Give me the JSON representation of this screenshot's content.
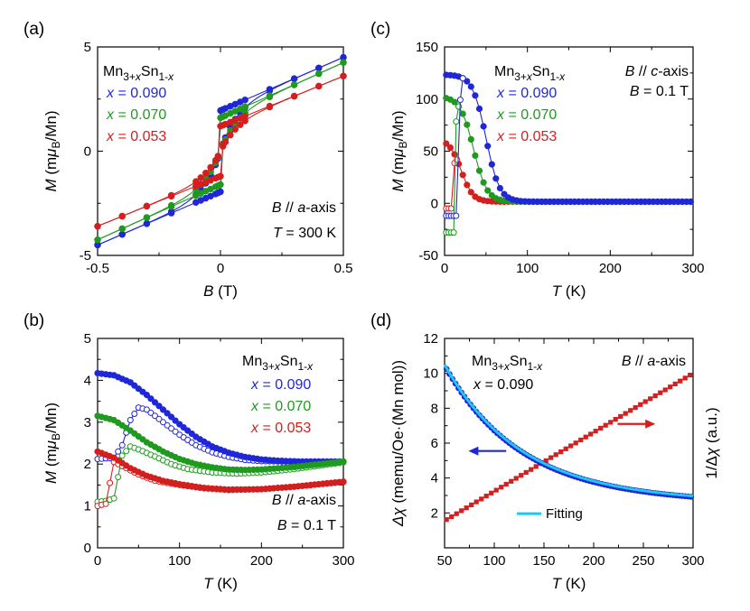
{
  "colors": {
    "blue": "#1f27d8",
    "green": "#1f9a1f",
    "red": "#d41f1f",
    "cyan": "#22c4f0",
    "axis": "#000000"
  },
  "chart_data": [
    {
      "id": "a",
      "type": "line",
      "panel_label": "(a)",
      "xlabel": {
        "sym": "B",
        "unit": " (T)"
      },
      "ylabel": {
        "sym": "M",
        "unit": " (m",
        "mu": "μ",
        "sub": "B",
        "tail": "/Mn)"
      },
      "xlim": [
        -0.5,
        0.5
      ],
      "ylim": [
        -5,
        5
      ],
      "xticks": [
        -0.5,
        0,
        0.5
      ],
      "xtick_labels": [
        "-0.5",
        "0",
        "0.5"
      ],
      "yticks": [
        -5,
        0,
        5
      ],
      "ytick_labels": [
        "-5",
        "0",
        "5"
      ],
      "legend_title": "Mn3+xSn1-x",
      "annotations": [
        {
          "sym": "B",
          "text": " // a-axis"
        },
        {
          "sym": "T",
          "text": " = 300 K"
        }
      ],
      "series": [
        {
          "name": "x = 0.090",
          "color": "blue",
          "sat": 1.95,
          "slope": 5.1,
          "ms": 0.8
        },
        {
          "name": "x = 0.070",
          "color": "green",
          "sat": 1.6,
          "slope": 5.3,
          "ms": 0.7
        },
        {
          "name": "x = 0.053",
          "color": "red",
          "sat": 1.2,
          "slope": 4.8,
          "ms": 0.45
        }
      ]
    },
    {
      "id": "c",
      "type": "line",
      "panel_label": "(c)",
      "xlabel": {
        "sym": "T",
        "unit": " (K)"
      },
      "ylabel": {
        "sym": "M",
        "unit": " (m",
        "mu": "μ",
        "sub": "B",
        "tail": "/Mn)"
      },
      "xlim": [
        0,
        300
      ],
      "ylim": [
        -50,
        150
      ],
      "xticks": [
        0,
        100,
        200,
        300
      ],
      "xtick_labels": [
        "0",
        "100",
        "200",
        "300"
      ],
      "yticks": [
        -50,
        0,
        50,
        100,
        150
      ],
      "ytick_labels": [
        "-50",
        "0",
        "50",
        "100",
        "150"
      ],
      "legend_title": "Mn3+xSn1-x",
      "annotations": [
        {
          "sym": "B",
          "text": " // c-axis"
        },
        {
          "sym": "B",
          "text": " = 0.1 T"
        }
      ],
      "series": [
        {
          "name": "x = 0.090",
          "color": "blue",
          "m0": 122,
          "tc": 50,
          "w": 8,
          "zfc": -12,
          "tf": 16
        },
        {
          "name": "x = 0.070",
          "color": "green",
          "m0": 101,
          "tc": 35,
          "w": 8,
          "zfc": -28,
          "tf": 11
        },
        {
          "name": "x = 0.053",
          "color": "red",
          "m0": 60,
          "tc": 20,
          "w": 7,
          "zfc": -5,
          "tf": 9
        }
      ]
    },
    {
      "id": "b",
      "type": "line",
      "panel_label": "(b)",
      "xlabel": {
        "sym": "T",
        "unit": " (K)"
      },
      "ylabel": {
        "sym": "M",
        "unit": " (m",
        "mu": "μ",
        "sub": "B",
        "tail": "/Mn)"
      },
      "xlim": [
        0,
        300
      ],
      "ylim": [
        0,
        5
      ],
      "xticks": [
        0,
        100,
        200,
        300
      ],
      "xtick_labels": [
        "0",
        "100",
        "200",
        "300"
      ],
      "yticks": [
        0,
        1,
        2,
        3,
        4,
        5
      ],
      "ytick_labels": [
        "0",
        "1",
        "2",
        "3",
        "4",
        "5"
      ],
      "legend_title": "Mn3+xSn1-x",
      "annotations": [
        {
          "sym": "B",
          "text": " // a-axis"
        },
        {
          "sym": "B",
          "text": " = 0.1 T"
        }
      ],
      "series": [
        {
          "name": "x = 0.090",
          "color": "blue",
          "fc": [
            [
              0,
              4.17
            ],
            [
              20,
              4.12
            ],
            [
              40,
              3.95
            ],
            [
              60,
              3.65
            ],
            [
              80,
              3.3
            ],
            [
              100,
              2.95
            ],
            [
              120,
              2.65
            ],
            [
              140,
              2.42
            ],
            [
              160,
              2.27
            ],
            [
              180,
              2.17
            ],
            [
              200,
              2.11
            ],
            [
              220,
              2.08
            ],
            [
              250,
              2.06
            ],
            [
              300,
              2.06
            ]
          ],
          "zfc": [
            [
              0,
              2.12
            ],
            [
              20,
              2.15
            ],
            [
              30,
              2.45
            ],
            [
              40,
              3.05
            ],
            [
              50,
              3.35
            ],
            [
              60,
              3.3
            ],
            [
              80,
              3.0
            ],
            [
              100,
              2.7
            ],
            [
              120,
              2.45
            ],
            [
              140,
              2.28
            ],
            [
              160,
              2.17
            ],
            [
              180,
              2.1
            ],
            [
              200,
              2.07
            ],
            [
              250,
              2.05
            ],
            [
              300,
              2.06
            ]
          ]
        },
        {
          "name": "x = 0.070",
          "color": "green",
          "fc": [
            [
              0,
              3.15
            ],
            [
              20,
              3.05
            ],
            [
              40,
              2.8
            ],
            [
              60,
              2.52
            ],
            [
              80,
              2.3
            ],
            [
              100,
              2.12
            ],
            [
              120,
              2.0
            ],
            [
              140,
              1.92
            ],
            [
              160,
              1.87
            ],
            [
              180,
              1.86
            ],
            [
              200,
              1.87
            ],
            [
              240,
              1.93
            ],
            [
              300,
              2.06
            ]
          ],
          "zfc": [
            [
              0,
              1.1
            ],
            [
              10,
              1.12
            ],
            [
              20,
              1.18
            ],
            [
              30,
              2.2
            ],
            [
              40,
              2.42
            ],
            [
              50,
              2.35
            ],
            [
              70,
              2.18
            ],
            [
              90,
              2.0
            ],
            [
              110,
              1.88
            ],
            [
              140,
              1.8
            ],
            [
              170,
              1.77
            ],
            [
              200,
              1.8
            ],
            [
              240,
              1.88
            ],
            [
              300,
              2.04
            ]
          ]
        },
        {
          "name": "x = 0.053",
          "color": "red",
          "fc": [
            [
              0,
              2.3
            ],
            [
              20,
              2.15
            ],
            [
              40,
              1.9
            ],
            [
              60,
              1.72
            ],
            [
              80,
              1.6
            ],
            [
              100,
              1.52
            ],
            [
              130,
              1.43
            ],
            [
              160,
              1.39
            ],
            [
              200,
              1.4
            ],
            [
              240,
              1.46
            ],
            [
              300,
              1.58
            ]
          ],
          "zfc": [
            [
              0,
              1.0
            ],
            [
              10,
              1.05
            ],
            [
              20,
              2.05
            ],
            [
              30,
              1.95
            ],
            [
              50,
              1.75
            ],
            [
              70,
              1.6
            ],
            [
              100,
              1.5
            ],
            [
              130,
              1.42
            ],
            [
              160,
              1.38
            ],
            [
              200,
              1.4
            ],
            [
              240,
              1.46
            ],
            [
              300,
              1.57
            ]
          ]
        }
      ]
    },
    {
      "id": "d",
      "type": "line",
      "panel_label": "(d)",
      "xlabel": {
        "sym": "T",
        "unit": " (K)"
      },
      "ylabel": {
        "sym": "Δχ",
        "unit": " (memu/Oe·(Mn mol))"
      },
      "ylabel_right": "1/Δχ (a.u.)",
      "xlim": [
        50,
        300
      ],
      "ylim": [
        0,
        12
      ],
      "xticks": [
        50,
        100,
        150,
        200,
        250,
        300
      ],
      "xtick_labels": [
        "50",
        "100",
        "150",
        "200",
        "250",
        "300"
      ],
      "yticks": [
        2,
        4,
        6,
        8,
        10,
        12
      ],
      "ytick_labels": [
        "2",
        "4",
        "6",
        "8",
        "10",
        "12"
      ],
      "legend_title": "Mn3+xSn1-x",
      "annotations": [
        {
          "sym": "x",
          "text": " = 0.090"
        },
        {
          "sym": "B",
          "text": " // a-axis"
        }
      ],
      "fit_label": "Fitting",
      "series": [
        {
          "name": "Δχ",
          "color": "blue",
          "curve": "chi"
        },
        {
          "name": "1/Δχ",
          "color": "red",
          "curve": "inv"
        },
        {
          "name": "Fitting",
          "color": "cyan",
          "curve": "fit"
        }
      ]
    }
  ]
}
